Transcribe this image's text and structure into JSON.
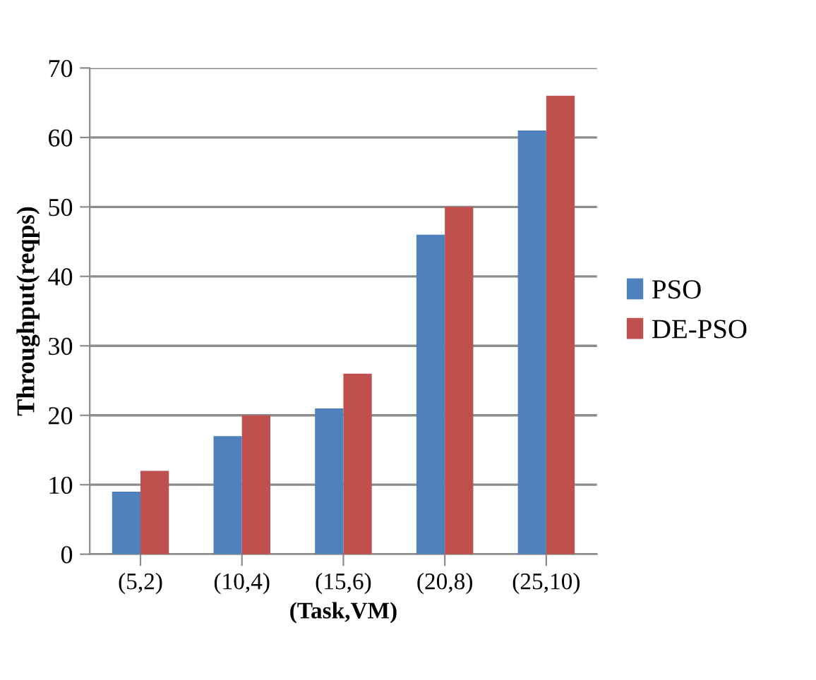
{
  "chart_data": {
    "type": "bar",
    "xlabel": "(Task,VM)",
    "ylabel": "Throughput(reqps)",
    "categories": [
      "(5,2)",
      "(10,4)",
      "(15,6)",
      "(20,8)",
      "(25,10)"
    ],
    "series": [
      {
        "name": "PSO",
        "color": "#4f81bd",
        "values": [
          9,
          17,
          21,
          46,
          61
        ]
      },
      {
        "name": "DE-PSO",
        "color": "#c0504d",
        "values": [
          12,
          20,
          26,
          50,
          66
        ]
      }
    ],
    "ylim": [
      0,
      70
    ],
    "yticks": [
      0,
      10,
      20,
      30,
      40,
      50,
      60,
      70
    ],
    "grid": "y",
    "legend": "right"
  }
}
